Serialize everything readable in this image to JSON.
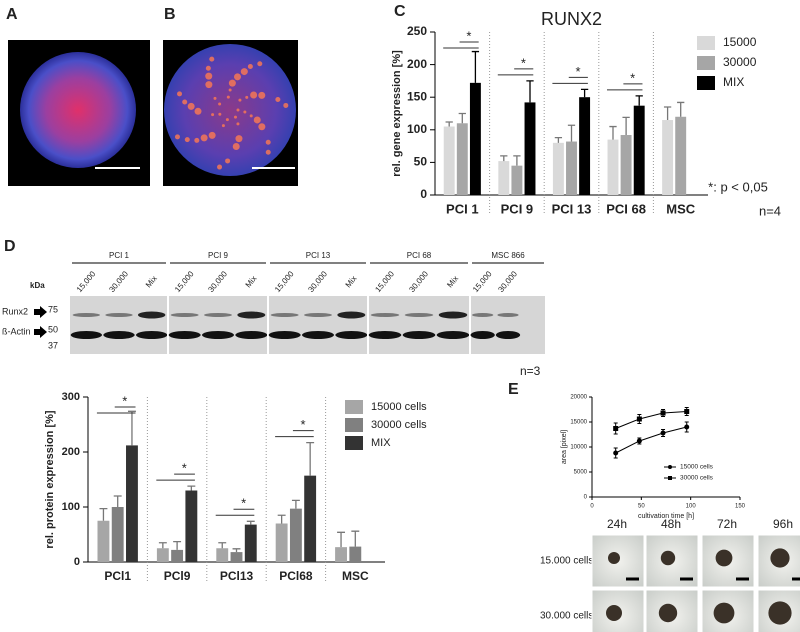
{
  "figure": {
    "panel_labels": [
      "A",
      "B",
      "C",
      "D",
      "E"
    ]
  },
  "chart_data": [
    {
      "type": "bar",
      "title": "RUNX2",
      "y_label": "rel. gene expression [%]",
      "categories": [
        "PCI 1",
        "PCI 9",
        "PCI 13",
        "PCI 68",
        "MSC"
      ],
      "series": [
        {
          "name": "15000",
          "color": "#d9d9d9",
          "values": [
            105,
            52,
            80,
            85,
            115
          ],
          "errors": [
            7,
            8,
            8,
            20,
            20
          ]
        },
        {
          "name": "30000",
          "color": "#a6a6a6",
          "values": [
            110,
            45,
            82,
            92,
            120
          ],
          "errors": [
            15,
            15,
            25,
            27,
            22
          ]
        },
        {
          "name": "MIX",
          "color": "#000000",
          "values": [
            172,
            142,
            150,
            137,
            null
          ],
          "errors": [
            48,
            33,
            12,
            15,
            null
          ]
        }
      ],
      "significance": [
        "*",
        "*",
        "*",
        "*",
        null
      ],
      "ylim": [
        0,
        250
      ],
      "yticks": [
        0,
        50,
        100,
        150,
        200,
        250
      ],
      "annotations": [
        "*: p < 0,05",
        "n=4"
      ]
    },
    {
      "type": "bar",
      "y_label": "rel. protein expression [%]",
      "categories": [
        "PCl1",
        "PCl9",
        "PCl13",
        "PCl68",
        "MSC"
      ],
      "series": [
        {
          "name": "15000 cells",
          "color": "#a6a6a6",
          "values": [
            75,
            25,
            25,
            70,
            27
          ],
          "errors": [
            22,
            10,
            10,
            15,
            27
          ]
        },
        {
          "name": "30000 cells",
          "color": "#808080",
          "values": [
            100,
            22,
            18,
            97,
            28
          ],
          "errors": [
            20,
            15,
            6,
            15,
            28
          ]
        },
        {
          "name": "MIX",
          "color": "#333333",
          "values": [
            212,
            130,
            68,
            157,
            null
          ],
          "errors": [
            62,
            8,
            6,
            60,
            null
          ]
        }
      ],
      "significance": [
        "*",
        "*",
        "*",
        "*",
        null
      ],
      "ylim": [
        0,
        300
      ],
      "yticks": [
        0,
        100,
        200,
        300
      ]
    },
    {
      "type": "line",
      "x_label": "cultivation time [h]",
      "y_label": "area [pixel]",
      "x": [
        24,
        48,
        72,
        96
      ],
      "series": [
        {
          "name": "15000 cells",
          "color": "#000000",
          "marker": "circle",
          "values": [
            8800,
            11200,
            12800,
            14000
          ],
          "errors": [
            1000,
            600,
            700,
            1000
          ]
        },
        {
          "name": "30000 cells",
          "color": "#000000",
          "marker": "square",
          "values": [
            13700,
            15600,
            16800,
            17100
          ],
          "errors": [
            1100,
            900,
            700,
            800
          ]
        }
      ],
      "xlim": [
        0,
        150
      ],
      "xticks": [
        0,
        50,
        100,
        150
      ],
      "ylim": [
        0,
        20000
      ],
      "yticks": [
        0,
        5000,
        10000,
        15000,
        20000
      ],
      "legend": "lower right"
    }
  ],
  "western_blot": {
    "groups": [
      "PCI 1",
      "PCI 9",
      "PCI 13",
      "PCI 68",
      "MSC 866"
    ],
    "lane_labels": [
      [
        "15,000",
        "30,000",
        "Mix"
      ],
      [
        "15,000",
        "30,000",
        "Mix"
      ],
      [
        "15,000",
        "30,000",
        "Mix"
      ],
      [
        "15,000",
        "30,000",
        "Mix"
      ],
      [
        "15,000",
        "30,000"
      ]
    ],
    "kda_label": "kDa",
    "markers": [
      "75",
      "50",
      "37"
    ],
    "proteins": [
      "Runx2",
      "ß-Actin"
    ],
    "note": "n=3"
  },
  "microscopy": {
    "times": [
      "24h",
      "48h",
      "72h",
      "96h"
    ],
    "rows": [
      "15.000 cells",
      "30.000 cells"
    ]
  }
}
